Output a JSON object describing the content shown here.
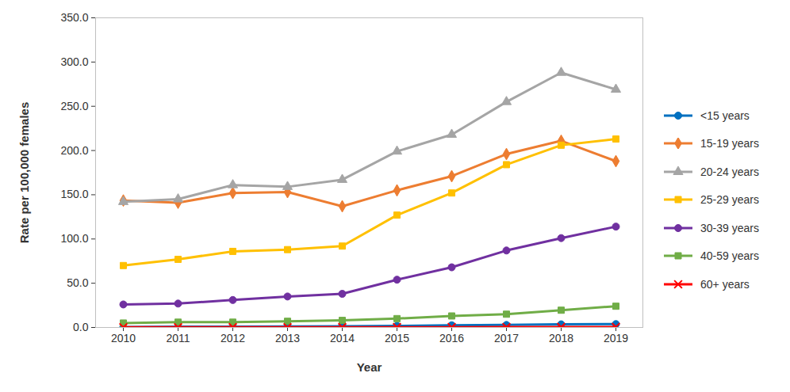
{
  "chart_data": {
    "type": "line",
    "x_label": "Year",
    "y_label": "Rate per 100,000 females",
    "x": [
      2010,
      2011,
      2012,
      2013,
      2014,
      2015,
      2016,
      2017,
      2018,
      2019
    ],
    "ylim": [
      0,
      350
    ],
    "yticks": [
      {
        "value": 0,
        "label": "0.0"
      },
      {
        "value": 50,
        "label": "50.0"
      },
      {
        "value": 100,
        "label": "100.0"
      },
      {
        "value": 150,
        "label": "150.0"
      },
      {
        "value": 200,
        "label": "200.0"
      },
      {
        "value": 250,
        "label": "250.0"
      },
      {
        "value": 300,
        "label": "300.0"
      },
      {
        "value": 350,
        "label": "350.0"
      }
    ],
    "grid": false,
    "legend": "right",
    "series": [
      {
        "name": "<15 years",
        "color": "#0070c0",
        "marker": "circle",
        "values": [
          0.5,
          0.8,
          1.0,
          1.2,
          1.3,
          1.8,
          2.5,
          2.8,
          3.5,
          3.8
        ]
      },
      {
        "name": "15-19 years",
        "color": "#ed7d31",
        "marker": "diamond",
        "values": [
          143.5,
          141,
          152,
          153,
          137,
          155,
          171,
          196,
          211,
          188
        ]
      },
      {
        "name": "20-24 years",
        "color": "#a5a5a5",
        "marker": "triangle",
        "values": [
          142,
          145,
          161,
          159,
          167,
          199,
          218,
          255,
          288,
          269
        ]
      },
      {
        "name": "25-29 years",
        "color": "#ffc000",
        "marker": "square",
        "values": [
          70,
          77,
          86,
          88,
          92,
          127,
          152,
          184,
          206,
          213
        ]
      },
      {
        "name": "30-39 years",
        "color": "#7030a0",
        "marker": "circle",
        "values": [
          26,
          27,
          31,
          35,
          38,
          54,
          68,
          87,
          101,
          114
        ]
      },
      {
        "name": "40-59 years",
        "color": "#70ad47",
        "marker": "square",
        "values": [
          5,
          6,
          6,
          7,
          8,
          10,
          13,
          15,
          19.5,
          24
        ]
      },
      {
        "name": "60+ years",
        "color": "#ff0000",
        "marker": "x",
        "values": [
          0.2,
          0.2,
          0.3,
          0.2,
          0.3,
          0.3,
          0.3,
          0.4,
          0.5,
          0.5
        ]
      }
    ]
  }
}
